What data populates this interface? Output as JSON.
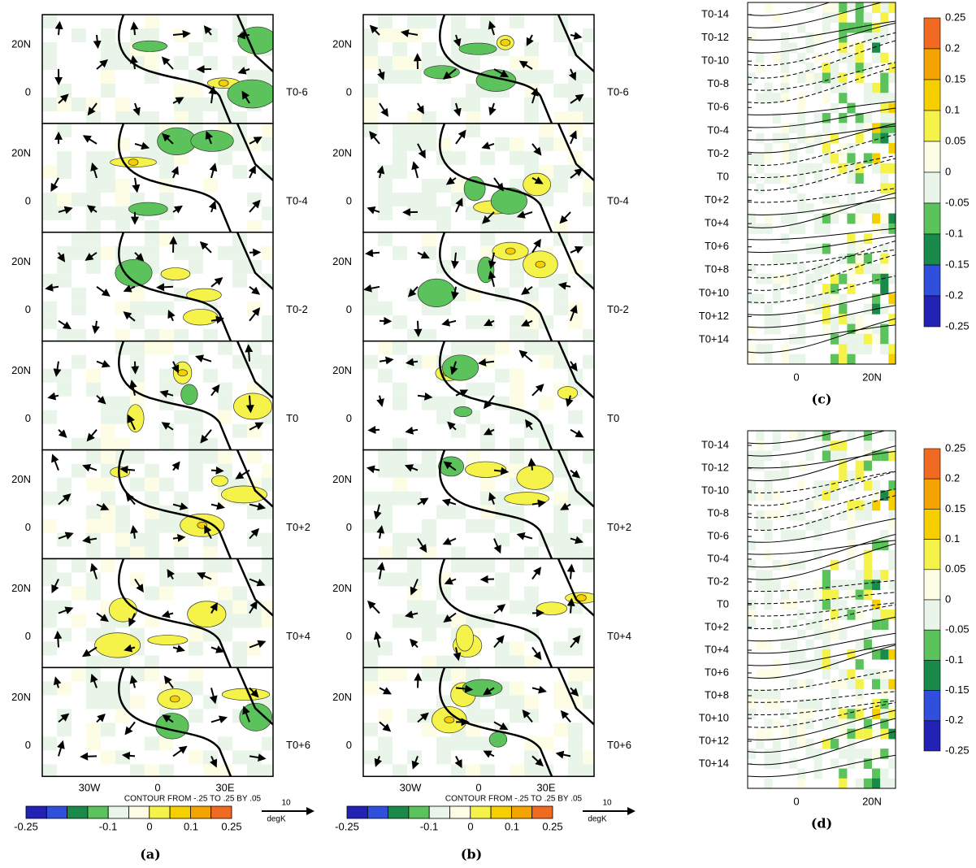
{
  "panels": {
    "a": {
      "label": "(a)",
      "rows": [
        "T0-6",
        "T0-4",
        "T0-2",
        "T0",
        "T0+2",
        "T0+4",
        "T0+6"
      ],
      "lat_labels": [
        "20N",
        "0"
      ],
      "lon_labels": [
        "30W",
        "0",
        "30E"
      ],
      "contour_note": "CONTOUR FROM -.25 TO .25 BY .05",
      "colorbar_labels": [
        "-0.25",
        "-0.1",
        "0",
        "0.1",
        "0.25"
      ],
      "unit": "degK",
      "vector_ref": "10"
    },
    "b": {
      "label": "(b)",
      "rows": [
        "T0-6",
        "T0-4",
        "T0-2",
        "T0",
        "T0+2",
        "T0+4",
        "T0+6"
      ],
      "lat_labels": [
        "20N",
        "0"
      ],
      "lon_labels": [
        "30W",
        "0",
        "30E"
      ],
      "contour_note": "CONTOUR FROM -.25 TO .25 BY .05",
      "colorbar_labels": [
        "-0.25",
        "-0.1",
        "0",
        "0.1",
        "0.25"
      ],
      "unit": "degK",
      "vector_ref": "10"
    },
    "c": {
      "label": "(c)",
      "rows": [
        "T0-14",
        "T0-12",
        "T0-10",
        "T0-8",
        "T0-6",
        "T0-4",
        "T0-2",
        "T0",
        "T0+2",
        "T0+4",
        "T0+6",
        "T0+8",
        "T0+10",
        "T0+12",
        "T0+14"
      ],
      "x_labels": [
        "0",
        "20N"
      ],
      "colorbar_labels": [
        "0.25",
        "0.2",
        "0.15",
        "0.1",
        "0.05",
        "0",
        "-0.05",
        "-0.1",
        "-0.15",
        "-0.2",
        "-0.25"
      ]
    },
    "d": {
      "label": "(d)",
      "rows": [
        "T0-14",
        "T0-12",
        "T0-10",
        "T0-8",
        "T0-6",
        "T0-4",
        "T0-2",
        "T0",
        "T0+2",
        "T0+4",
        "T0+6",
        "T0+8",
        "T0+10",
        "T0+12",
        "T0+14"
      ],
      "x_labels": [
        "0",
        "20N"
      ],
      "colorbar_labels": [
        "0.25",
        "0.2",
        "0.15",
        "0.1",
        "0.05",
        "0",
        "-0.05",
        "-0.1",
        "-0.15",
        "-0.2",
        "-0.25"
      ]
    }
  },
  "palette": [
    "#2222b4",
    "#2f4fdc",
    "#1a8a4a",
    "#5cc35c",
    "#e9f5e9",
    "#fdfde6",
    "#f5f24a",
    "#f5cf00",
    "#f5a300",
    "#f06a22"
  ]
}
